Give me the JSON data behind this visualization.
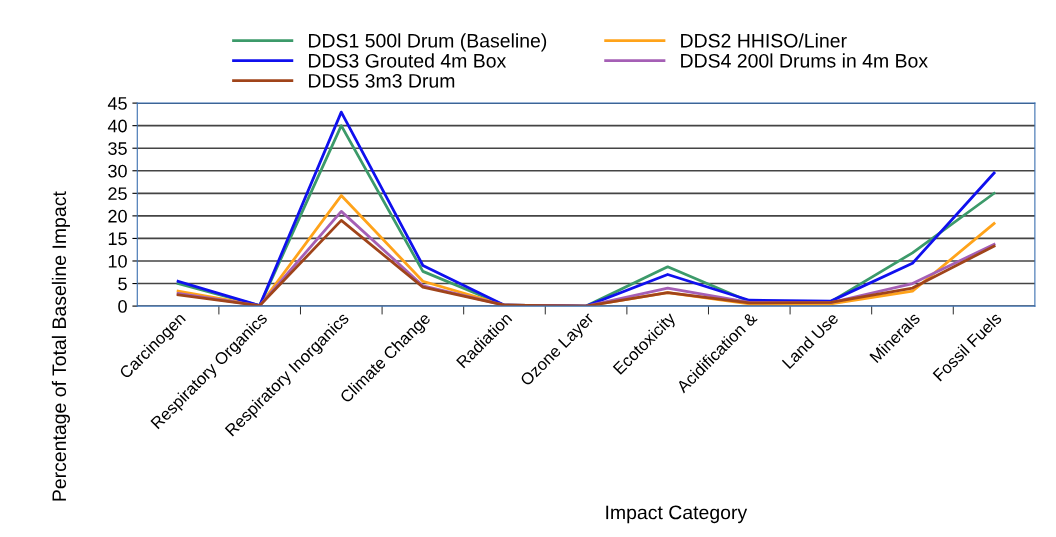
{
  "chart_data": {
    "type": "line",
    "xlabel": "Impact Category",
    "ylabel": "Percentage of Total Baseline Impact",
    "categories": [
      "Carcinogen",
      "Respiratory Organics",
      "Respiratory Inorganics",
      "Climate Change",
      "Radiation",
      "Ozone Layer",
      "Ecotoxicity",
      "Acidification &",
      "Land Use",
      "Minerals",
      "Fossil Fuels"
    ],
    "series": [
      {
        "name": "DDS1 500l Drum (Baseline)",
        "color": "#3c9a6a",
        "values": [
          5,
          0.1,
          40,
          7.7,
          0.2,
          0,
          8.7,
          1,
          1,
          11.8,
          25
        ]
      },
      {
        "name": "DDS2 HHISO/Liner",
        "color": "#ffa31a",
        "values": [
          3.3,
          0.1,
          24.5,
          5.5,
          0.2,
          0,
          3,
          0.5,
          0.5,
          3.3,
          18.3
        ]
      },
      {
        "name": "DDS3 Grouted 4m Box",
        "color": "#1010ee",
        "values": [
          5.5,
          0.1,
          43,
          9,
          0.2,
          0,
          7,
          1.3,
          1.1,
          9.5,
          29.5
        ]
      },
      {
        "name": "DDS4 200l Drums in 4m Box",
        "color": "#a55fb5",
        "values": [
          2.8,
          0.1,
          21,
          4.5,
          0.2,
          0,
          4,
          0.8,
          0.8,
          5,
          13.7
        ]
      },
      {
        "name": "DDS5 3m3 Drum",
        "color": "#a0441a",
        "values": [
          2.5,
          0.1,
          19,
          4.2,
          0.2,
          0,
          3,
          0.7,
          0.8,
          4,
          13.3
        ]
      }
    ],
    "ylim": [
      0,
      45
    ],
    "yticks": [
      0,
      5,
      10,
      15,
      20,
      25,
      30,
      35,
      40,
      45
    ],
    "grid": "y",
    "legend": "top",
    "marker": "none",
    "line_style": "solid"
  }
}
